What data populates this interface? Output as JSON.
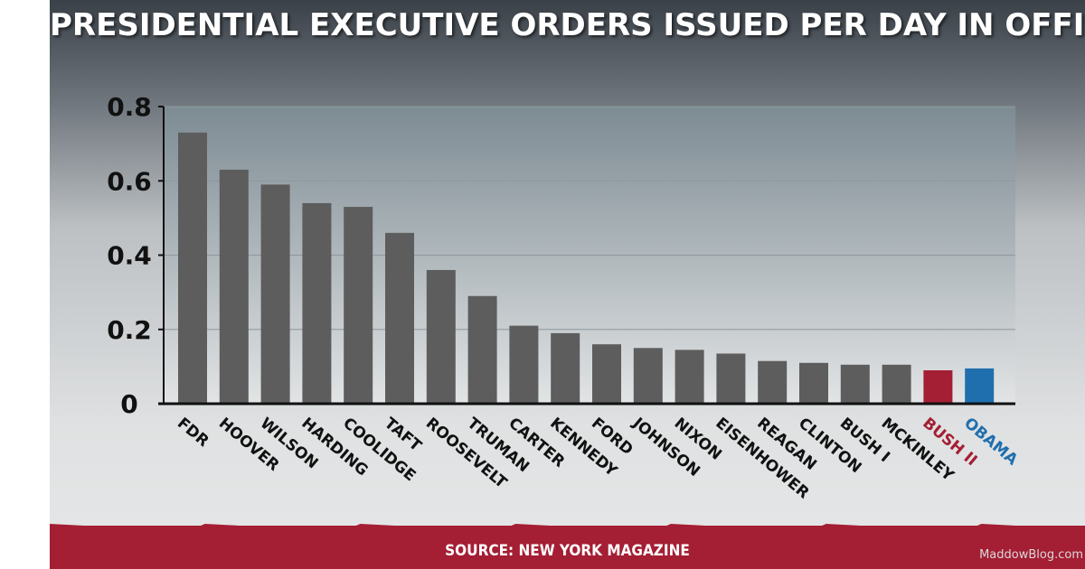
{
  "title": "PRESIDENTIAL EXECUTIVE ORDERS ISSUED PER DAY IN OFFICE",
  "source": "SOURCE: NEW YORK MAGAZINE",
  "watermark": "MaddowBlog.com",
  "colors": {
    "bar_default": "#5d5d5d",
    "bush_ii": "#a41e34",
    "obama": "#1f6fae",
    "plot_top": "#7d8b93",
    "plot_bottom": "#e2e4e5",
    "band": "#a41e34"
  },
  "chart_data": {
    "type": "bar",
    "title": "PRESIDENTIAL EXECUTIVE ORDERS ISSUED PER DAY IN OFFICE",
    "xlabel": "",
    "ylabel": "",
    "ylim": [
      0,
      0.8
    ],
    "yticks": [
      0,
      0.2,
      0.4,
      0.6,
      0.8
    ],
    "ytick_labels": [
      "0",
      "0.2",
      "0.4",
      "0.6",
      "0.8"
    ],
    "grid": true,
    "categories": [
      "FDR",
      "HOOVER",
      "WILSON",
      "HARDING",
      "COOLIDGE",
      "TAFT",
      "ROOSEVELT",
      "TRUMAN",
      "CARTER",
      "KENNEDY",
      "FORD",
      "JOHNSON",
      "NIXON",
      "EISENHOWER",
      "REAGAN",
      "CLINTON",
      "BUSH I",
      "MCKINLEY",
      "BUSH II",
      "OBAMA"
    ],
    "values": [
      0.73,
      0.63,
      0.59,
      0.54,
      0.53,
      0.46,
      0.36,
      0.29,
      0.21,
      0.19,
      0.16,
      0.15,
      0.145,
      0.135,
      0.115,
      0.11,
      0.105,
      0.105,
      0.09,
      0.095
    ],
    "highlight": {
      "BUSH II": "#a41e34",
      "OBAMA": "#1f6fae"
    }
  }
}
